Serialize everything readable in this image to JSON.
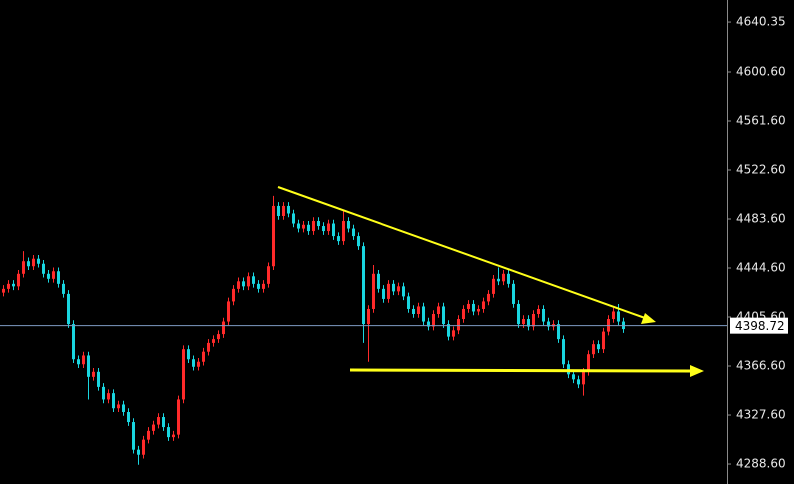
{
  "chart_data": {
    "type": "candlestick",
    "open": [
      4425,
      4428,
      4432,
      4430,
      4440,
      4450,
      4446,
      4452,
      4448,
      4440,
      4436,
      4442,
      4432,
      4424,
      4400,
      4372,
      4368,
      4375,
      4358,
      4362,
      4350,
      4340,
      4345,
      4333,
      4336,
      4330,
      4322,
      4300,
      4296,
      4308,
      4315,
      4320,
      4326,
      4318,
      4310,
      4312,
      4340,
      4380,
      4372,
      4366,
      4370,
      4378,
      4385,
      4388,
      4392,
      4402,
      4418,
      4428,
      4434,
      4430,
      4438,
      4432,
      4428,
      4432,
      4446,
      4494,
      4486,
      4494,
      4488,
      4480,
      4476,
      4479,
      4474,
      4482,
      4478,
      4474,
      4480,
      4470,
      4466,
      4482,
      4476,
      4470,
      4462,
      4400,
      4412,
      4440,
      4428,
      4420,
      4432,
      4426,
      4430,
      4422,
      4412,
      4408,
      4414,
      4402,
      4398,
      4408,
      4414,
      4400,
      4390,
      4395,
      4404,
      4412,
      4416,
      4410,
      4412,
      4418,
      4424,
      4436,
      4434,
      4440,
      4432,
      4416,
      4400,
      4404,
      4398,
      4408,
      4412,
      4402,
      4398,
      4400,
      4388,
      4368,
      4360,
      4356,
      4352,
      4362,
      4376,
      4384,
      4380,
      4394,
      4404,
      4410,
      4402
    ],
    "high": [
      4431,
      4435,
      4435,
      4443,
      4458,
      4453,
      4455,
      4455,
      4451,
      4443,
      4445,
      4445,
      4435,
      4427,
      4403,
      4375,
      4378,
      4378,
      4365,
      4365,
      4353,
      4348,
      4348,
      4339,
      4339,
      4333,
      4325,
      4303,
      4311,
      4318,
      4323,
      4329,
      4329,
      4321,
      4315,
      4343,
      4383,
      4383,
      4375,
      4373,
      4381,
      4388,
      4391,
      4395,
      4405,
      4421,
      4431,
      4437,
      4437,
      4441,
      4441,
      4435,
      4435,
      4449,
      4502,
      4497,
      4497,
      4497,
      4491,
      4483,
      4482,
      4482,
      4485,
      4485,
      4481,
      4483,
      4483,
      4473,
      4490,
      4485,
      4479,
      4473,
      4465,
      4415,
      4447,
      4443,
      4431,
      4435,
      4435,
      4433,
      4433,
      4425,
      4415,
      4417,
      4417,
      4405,
      4411,
      4417,
      4417,
      4403,
      4398,
      4407,
      4415,
      4419,
      4419,
      4415,
      4421,
      4427,
      4439,
      4445,
      4443,
      4443,
      4435,
      4419,
      4407,
      4407,
      4411,
      4415,
      4415,
      4405,
      4403,
      4403,
      4391,
      4371,
      4363,
      4359,
      4365,
      4379,
      4387,
      4387,
      4397,
      4407,
      4413,
      4416,
      4405
    ],
    "low": [
      4422,
      4425,
      4427,
      4427,
      4437,
      4443,
      4443,
      4445,
      4437,
      4433,
      4433,
      4429,
      4421,
      4397,
      4369,
      4365,
      4365,
      4340,
      4355,
      4347,
      4337,
      4337,
      4330,
      4330,
      4327,
      4319,
      4297,
      4288,
      4293,
      4305,
      4312,
      4317,
      4315,
      4307,
      4307,
      4309,
      4337,
      4369,
      4363,
      4363,
      4367,
      4375,
      4382,
      4385,
      4389,
      4399,
      4415,
      4425,
      4427,
      4427,
      4429,
      4425,
      4425,
      4429,
      4443,
      4483,
      4483,
      4485,
      4477,
      4473,
      4473,
      4471,
      4471,
      4475,
      4471,
      4471,
      4467,
      4463,
      4463,
      4473,
      4467,
      4459,
      4385,
      4370,
      4409,
      4425,
      4417,
      4417,
      4423,
      4423,
      4419,
      4409,
      4405,
      4405,
      4399,
      4395,
      4395,
      4405,
      4397,
      4387,
      4387,
      4392,
      4401,
      4409,
      4407,
      4407,
      4409,
      4415,
      4421,
      4431,
      4431,
      4429,
      4413,
      4397,
      4397,
      4395,
      4395,
      4405,
      4399,
      4395,
      4395,
      4385,
      4365,
      4357,
      4353,
      4349,
      4343,
      4359,
      4373,
      4377,
      4377,
      4391,
      4401,
      4399,
      4393
    ],
    "close": [
      4428,
      4432,
      4430,
      4440,
      4450,
      4446,
      4452,
      4448,
      4440,
      4436,
      4442,
      4432,
      4424,
      4400,
      4372,
      4368,
      4375,
      4358,
      4362,
      4350,
      4340,
      4345,
      4333,
      4336,
      4330,
      4322,
      4300,
      4296,
      4308,
      4315,
      4320,
      4326,
      4318,
      4310,
      4312,
      4340,
      4380,
      4372,
      4366,
      4370,
      4378,
      4385,
      4388,
      4392,
      4402,
      4418,
      4428,
      4434,
      4430,
      4438,
      4432,
      4428,
      4432,
      4446,
      4494,
      4486,
      4494,
      4488,
      4480,
      4476,
      4479,
      4474,
      4482,
      4478,
      4474,
      4480,
      4470,
      4466,
      4482,
      4476,
      4470,
      4462,
      4400,
      4412,
      4440,
      4428,
      4420,
      4432,
      4426,
      4430,
      4422,
      4412,
      4408,
      4414,
      4402,
      4398,
      4408,
      4414,
      4400,
      4390,
      4395,
      4404,
      4412,
      4416,
      4410,
      4412,
      4418,
      4424,
      4436,
      4434,
      4440,
      4432,
      4416,
      4400,
      4404,
      4398,
      4408,
      4412,
      4402,
      4398,
      4400,
      4388,
      4368,
      4360,
      4356,
      4352,
      4362,
      4376,
      4384,
      4380,
      4394,
      4404,
      4410,
      4402,
      4396
    ],
    "ylim": [
      4272.7,
      4657.9
    ],
    "yticks": [
      {
        "value": 4288.6,
        "label": "4288.60"
      },
      {
        "value": 4327.6,
        "label": "4327.60"
      },
      {
        "value": 4366.6,
        "label": "4366.60"
      },
      {
        "value": 4405.6,
        "label": "4405.60"
      },
      {
        "value": 4444.6,
        "label": "4444.60"
      },
      {
        "value": 4483.6,
        "label": "4483.60"
      },
      {
        "value": 4522.6,
        "label": "4522.60"
      },
      {
        "value": 4561.6,
        "label": "4561.60"
      },
      {
        "value": 4600.6,
        "label": "4600.60"
      },
      4640.35
    ],
    "up_color": "#ff2a2a",
    "down_color": "#19d6e0",
    "last_price": {
      "value": 4398.72,
      "label": "4398.72"
    }
  }
}
